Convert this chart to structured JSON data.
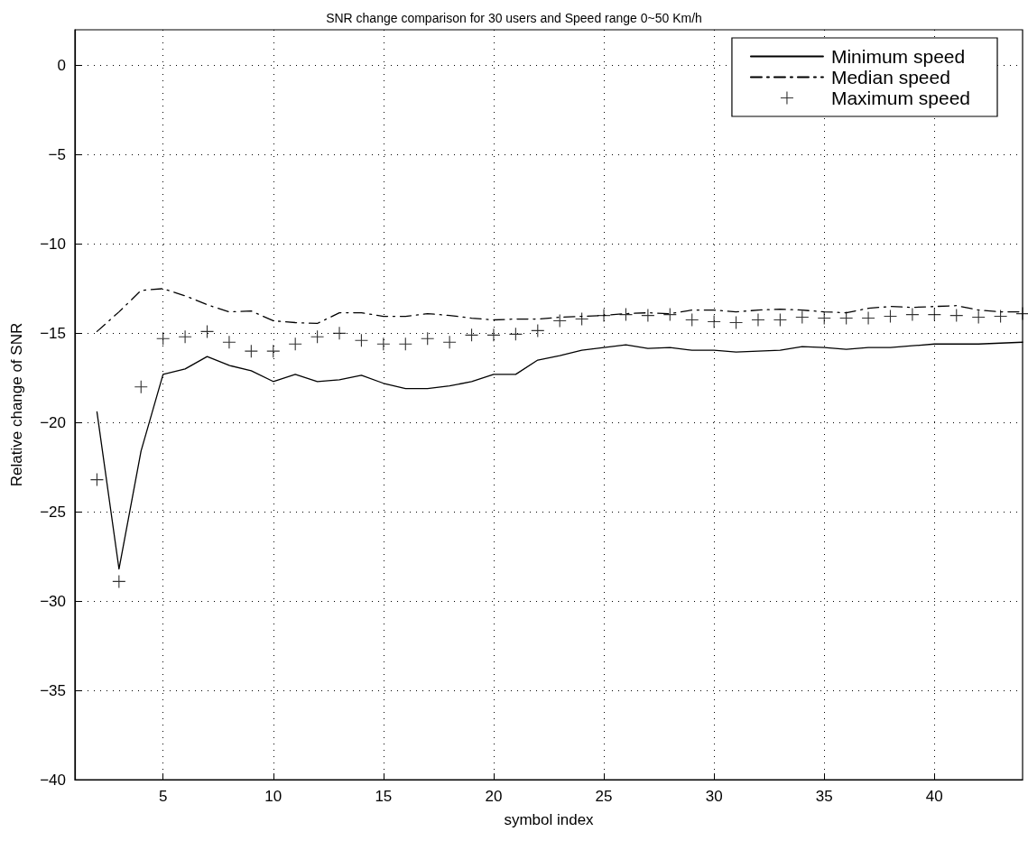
{
  "chart_data": {
    "type": "line",
    "title": "SNR change comparison for 30 users and Speed range 0~50 Km/h",
    "xlabel": "symbol index",
    "ylabel": "Relative change of SNR",
    "x": [
      2,
      3,
      4,
      5,
      6,
      7,
      8,
      9,
      10,
      11,
      12,
      13,
      14,
      15,
      16,
      17,
      18,
      19,
      20,
      21,
      22,
      23,
      24,
      25,
      26,
      27,
      28,
      29,
      30,
      31,
      32,
      33,
      34,
      35,
      36,
      37,
      38,
      39,
      40,
      41,
      42,
      43,
      44
    ],
    "series": [
      {
        "name": "Minimum speed",
        "color": "#000000",
        "line_style": "solid",
        "marker": "none",
        "values": [
          -19.4,
          -28.2,
          -21.6,
          -17.3,
          -17.0,
          -16.3,
          -16.8,
          -17.1,
          -17.7,
          -17.3,
          -17.7,
          -17.6,
          -17.35,
          -17.8,
          -18.1,
          -18.1,
          -17.95,
          -17.7,
          -17.3,
          -17.3,
          -16.5,
          -16.25,
          -15.95,
          -15.8,
          -15.65,
          -15.85,
          -15.8,
          -15.95,
          -15.95,
          -16.05,
          -16.0,
          -15.95,
          -15.75,
          -15.8,
          -15.9,
          -15.8,
          -15.8,
          -15.7,
          -15.6,
          -15.6,
          -15.6,
          -15.55,
          -15.5
        ]
      },
      {
        "name": "Median speed",
        "color": "#000000",
        "line_style": "dashed",
        "marker": "none",
        "values": [
          -14.9,
          -13.8,
          -12.6,
          -12.5,
          -12.9,
          -13.4,
          -13.8,
          -13.75,
          -14.3,
          -14.4,
          -14.45,
          -13.85,
          -13.85,
          -14.05,
          -14.05,
          -13.9,
          -14.0,
          -14.15,
          -14.25,
          -14.2,
          -14.2,
          -14.1,
          -14.05,
          -14.0,
          -13.9,
          -13.85,
          -13.9,
          -13.7,
          -13.7,
          -13.8,
          -13.7,
          -13.65,
          -13.7,
          -13.8,
          -13.85,
          -13.6,
          -13.5,
          -13.55,
          -13.5,
          -13.45,
          -13.7,
          -13.8,
          -13.8
        ]
      },
      {
        "name": "Maximum speed",
        "color": "#000000",
        "type": "scatter",
        "marker": "cross",
        "values": [
          -23.2,
          -28.9,
          -18.0,
          -15.3,
          -15.2,
          -14.9,
          -15.5,
          -16.0,
          -16.0,
          -15.6,
          -15.2,
          -15.0,
          -15.4,
          -15.6,
          -15.6,
          -15.3,
          -15.5,
          -15.1,
          -15.1,
          -15.05,
          -14.85,
          -14.3,
          -14.2,
          -14.0,
          -13.95,
          -14.0,
          -13.95,
          -14.25,
          -14.35,
          -14.4,
          -14.25,
          -14.25,
          -14.1,
          -14.15,
          -14.15,
          -14.15,
          -14.05,
          -13.95,
          -13.95,
          -14.0,
          -14.1,
          -14.05,
          -13.9
        ]
      }
    ],
    "xlim": [
      1,
      44
    ],
    "xticks": [
      5,
      10,
      15,
      20,
      25,
      30,
      35,
      40
    ],
    "ylim": [
      -40,
      2
    ],
    "yticks": [
      -40,
      -35,
      -30,
      -25,
      -20,
      -15,
      -10,
      -5,
      0
    ],
    "grid": true,
    "legend": "top right"
  }
}
